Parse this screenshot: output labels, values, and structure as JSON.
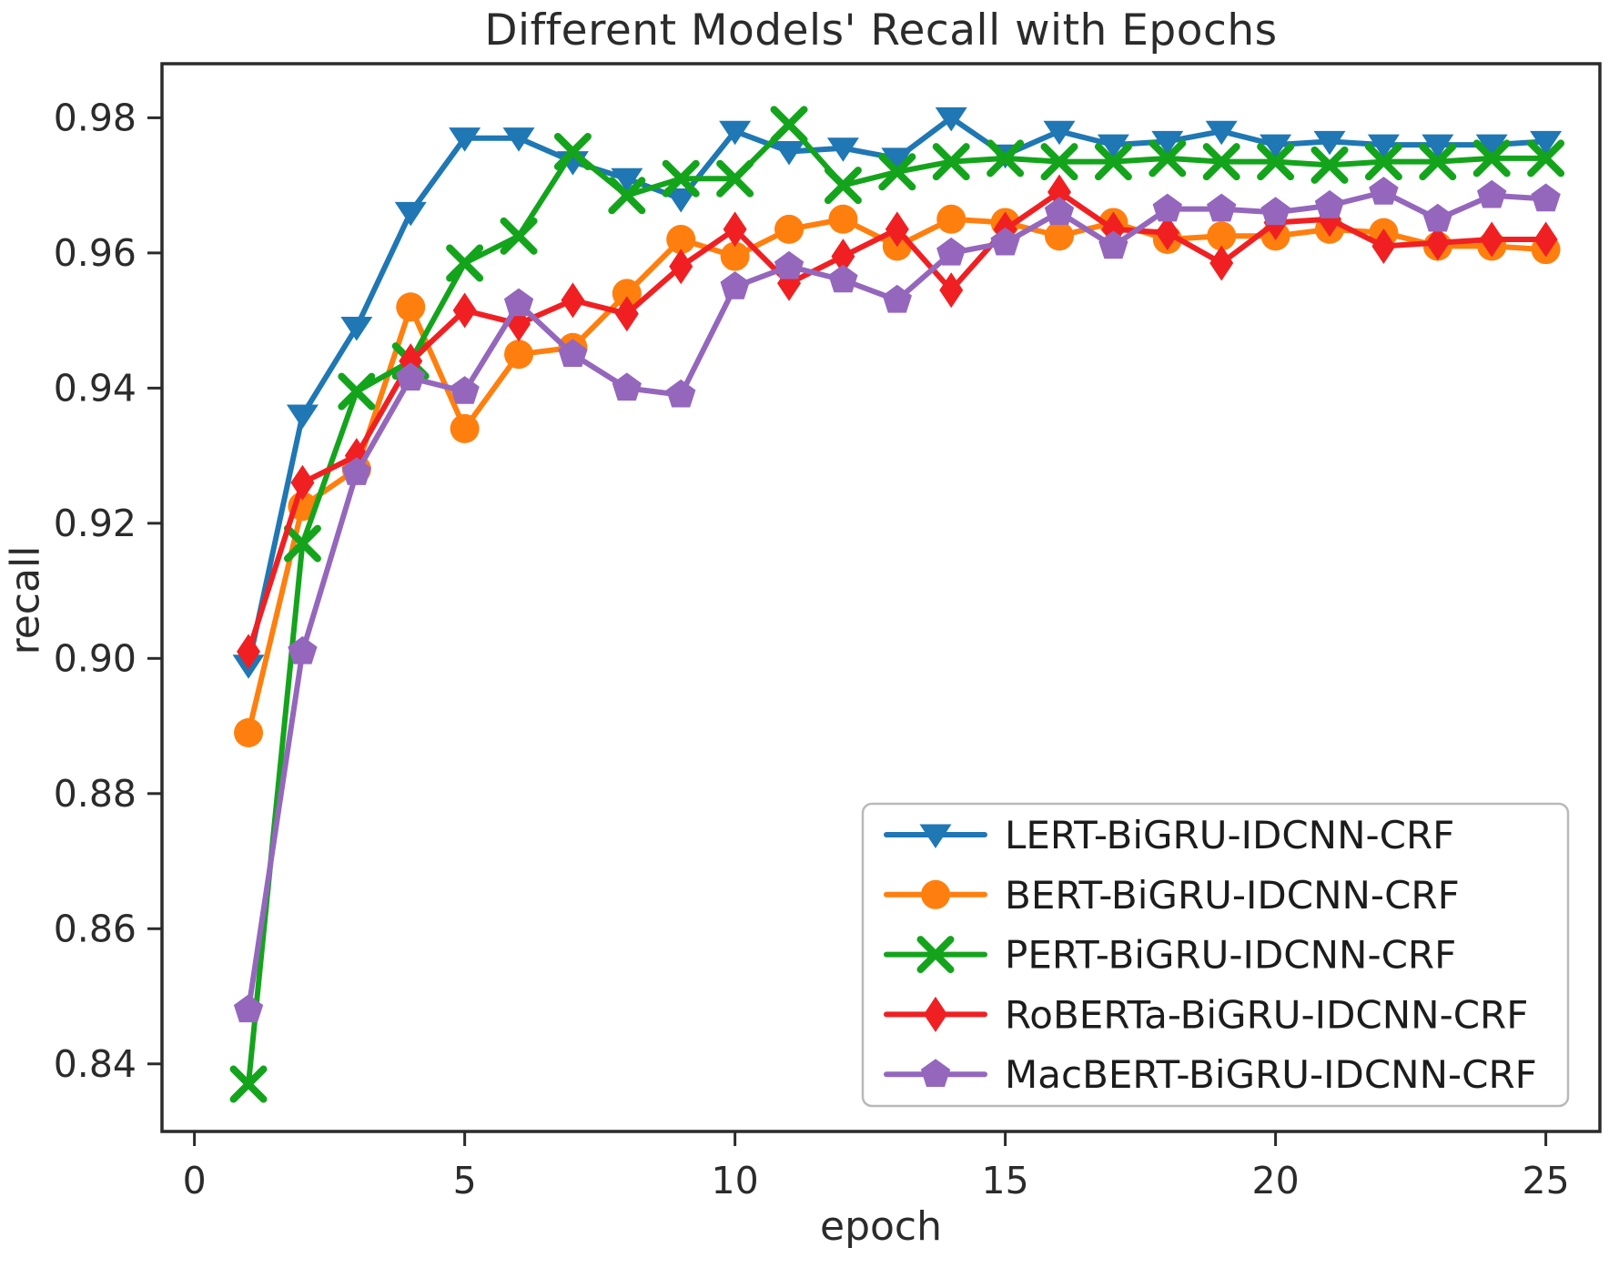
{
  "page": {
    "background": "#ffffff"
  },
  "chart_data": {
    "type": "line",
    "title": "Different Models' Recall with Epochs",
    "xlabel": "epoch",
    "ylabel": "recall",
    "xlim": [
      -0.6,
      26.0
    ],
    "ylim": [
      0.83,
      0.988
    ],
    "grid": false,
    "legend_position": "lower right",
    "axis_color": "#2b2b2b",
    "x_ticks": [
      0,
      5,
      10,
      15,
      20,
      25
    ],
    "x_tick_labels": [
      "0",
      "5",
      "10",
      "15",
      "20",
      "25"
    ],
    "y_ticks": [
      0.84,
      0.86,
      0.88,
      0.9,
      0.92,
      0.94,
      0.96,
      0.98
    ],
    "y_tick_labels": [
      "0.84",
      "0.86",
      "0.88",
      "0.90",
      "0.92",
      "0.94",
      "0.96",
      "0.98"
    ],
    "x": [
      1,
      2,
      3,
      4,
      5,
      6,
      7,
      8,
      9,
      10,
      11,
      12,
      13,
      14,
      15,
      16,
      17,
      18,
      19,
      20,
      21,
      22,
      23,
      24,
      25
    ],
    "series": [
      {
        "name": "LERT-BiGRU-IDCNN-CRF",
        "color": "#1f77b4",
        "marker": "triangle-down",
        "values": [
          0.899,
          0.936,
          0.949,
          0.966,
          0.977,
          0.977,
          0.9735,
          0.971,
          0.968,
          0.978,
          0.975,
          0.9755,
          0.974,
          0.98,
          0.9745,
          0.978,
          0.976,
          0.9765,
          0.978,
          0.976,
          0.9765,
          0.976,
          0.976,
          0.976,
          0.9765
        ]
      },
      {
        "name": "BERT-BiGRU-IDCNN-CRF",
        "color": "#ff7f0e",
        "marker": "circle",
        "values": [
          0.889,
          0.9225,
          0.928,
          0.952,
          0.934,
          0.945,
          0.946,
          0.954,
          0.962,
          0.9595,
          0.9635,
          0.965,
          0.961,
          0.965,
          0.9645,
          0.9625,
          0.9645,
          0.962,
          0.9625,
          0.9625,
          0.9635,
          0.963,
          0.961,
          0.961,
          0.9605
        ]
      },
      {
        "name": "PERT-BiGRU-IDCNN-CRF",
        "color": "#14a41c",
        "marker": "x",
        "values": [
          0.837,
          0.917,
          0.9395,
          0.944,
          0.9585,
          0.9625,
          0.975,
          0.9685,
          0.971,
          0.971,
          0.979,
          0.97,
          0.972,
          0.9735,
          0.974,
          0.9735,
          0.9735,
          0.974,
          0.9735,
          0.9735,
          0.973,
          0.9735,
          0.9735,
          0.974,
          0.974
        ]
      },
      {
        "name": "RoBERTa-BiGRU-IDCNN-CRF",
        "color": "#f02022",
        "marker": "diamond",
        "values": [
          0.901,
          0.926,
          0.93,
          0.944,
          0.9515,
          0.9495,
          0.953,
          0.951,
          0.958,
          0.9635,
          0.9555,
          0.9595,
          0.9635,
          0.9545,
          0.9635,
          0.969,
          0.9635,
          0.963,
          0.9585,
          0.9645,
          0.965,
          0.961,
          0.9615,
          0.962,
          0.962
        ]
      },
      {
        "name": "MacBERT-BiGRU-IDCNN-CRF",
        "color": "#9467bd",
        "marker": "pentagon",
        "values": [
          0.848,
          0.901,
          0.9275,
          0.9415,
          0.9395,
          0.9525,
          0.945,
          0.94,
          0.939,
          0.955,
          0.958,
          0.956,
          0.953,
          0.96,
          0.9615,
          0.966,
          0.961,
          0.9665,
          0.9665,
          0.966,
          0.967,
          0.969,
          0.965,
          0.9685,
          0.968
        ]
      }
    ]
  }
}
